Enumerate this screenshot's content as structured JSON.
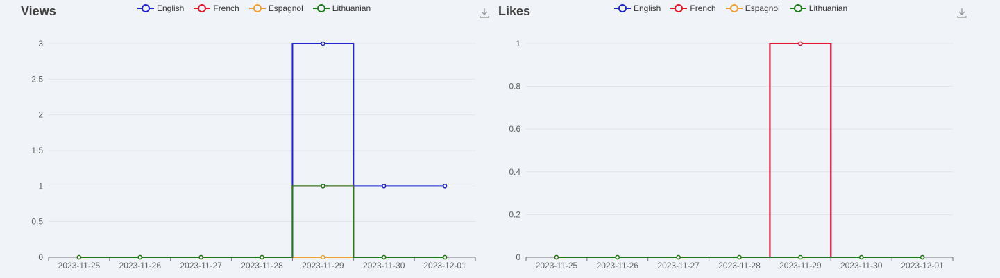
{
  "colors": {
    "English": "#1f22d1",
    "French": "#e5142a",
    "Espagnol": "#f0a030",
    "Lithuanian": "#1c7a1c"
  },
  "icons": {
    "download": "download-icon"
  },
  "chart_data": [
    {
      "type": "line",
      "step": "middle",
      "title": "Views",
      "legend_position": "top-center",
      "grid": true,
      "x": [
        "2023-11-25",
        "2023-11-26",
        "2023-11-27",
        "2023-11-28",
        "2023-11-29",
        "2023-11-30",
        "2023-12-01"
      ],
      "ylim": [
        0,
        3
      ],
      "yticks": [
        "0",
        "0.5",
        "1",
        "1.5",
        "2",
        "2.5",
        "3"
      ],
      "series": [
        {
          "name": "English",
          "values": [
            0,
            0,
            0,
            0,
            3,
            1,
            1
          ]
        },
        {
          "name": "French",
          "values": [
            0,
            0,
            0,
            0,
            1,
            0,
            0
          ]
        },
        {
          "name": "Espagnol",
          "values": [
            0,
            0,
            0,
            0,
            0,
            0,
            0
          ]
        },
        {
          "name": "Lithuanian",
          "values": [
            0,
            0,
            0,
            0,
            1,
            0,
            0
          ]
        }
      ]
    },
    {
      "type": "line",
      "step": "middle",
      "title": "Likes",
      "legend_position": "top-center",
      "grid": true,
      "x": [
        "2023-11-25",
        "2023-11-26",
        "2023-11-27",
        "2023-11-28",
        "2023-11-29",
        "2023-11-30",
        "2023-12-01"
      ],
      "ylim": [
        0,
        1
      ],
      "yticks": [
        "0",
        "0.2",
        "0.4",
        "0.6",
        "0.8",
        "1"
      ],
      "series": [
        {
          "name": "English",
          "values": [
            0,
            0,
            0,
            0,
            1,
            0,
            0
          ]
        },
        {
          "name": "French",
          "values": [
            0,
            0,
            0,
            0,
            1,
            0,
            0
          ]
        },
        {
          "name": "Espagnol",
          "values": [
            0,
            0,
            0,
            0,
            0,
            0,
            0
          ]
        },
        {
          "name": "Lithuanian",
          "values": [
            0,
            0,
            0,
            0,
            0,
            0,
            0
          ]
        }
      ]
    }
  ]
}
